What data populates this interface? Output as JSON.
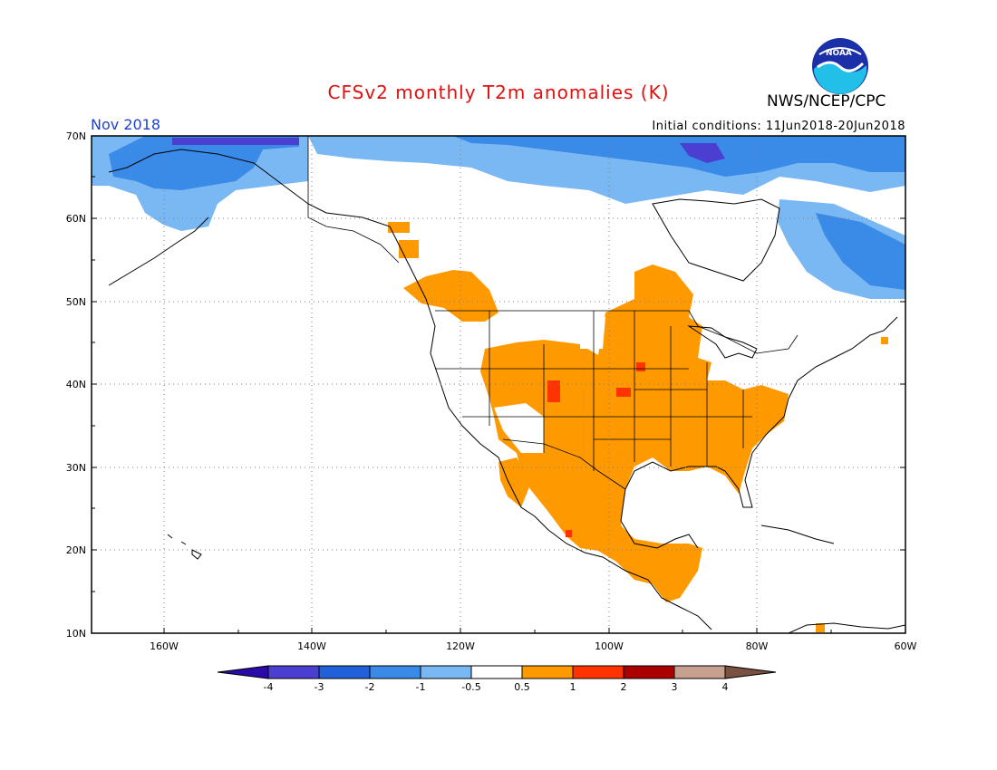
{
  "title": "CFSv2 monthly T2m anomalies (K)",
  "org": "NWS/NCEP/CPC",
  "logo_text": "NOAA",
  "valid_month": "Nov 2018",
  "initial_conditions": "Initial conditions: 11Jun2018-20Jun2018",
  "lat_labels": [
    "70N",
    "60N",
    "50N",
    "40N",
    "30N",
    "20N",
    "10N"
  ],
  "lon_labels": [
    "160W",
    "140W",
    "120W",
    "100W",
    "80W",
    "60W"
  ],
  "colorbar": {
    "labels": [
      "-4",
      "-3",
      "-2",
      "-1",
      "-0.5",
      "0.5",
      "1",
      "2",
      "3",
      "4"
    ],
    "colors": [
      "#2a0aa8",
      "#4a3fd0",
      "#2060d8",
      "#3a8ae8",
      "#7ab8f4",
      "#ffffff",
      "#ff9900",
      "#ff3300",
      "#aa0000",
      "#c8a090",
      "#7a5040"
    ]
  },
  "colors": {
    "warm_1": "#ff9900",
    "warm_2": "#ff3300",
    "cool_1": "#7ab8f4",
    "cool_2": "#3a8ae8",
    "cool_3": "#2060d8",
    "cool_4": "#4a3fd0"
  }
}
